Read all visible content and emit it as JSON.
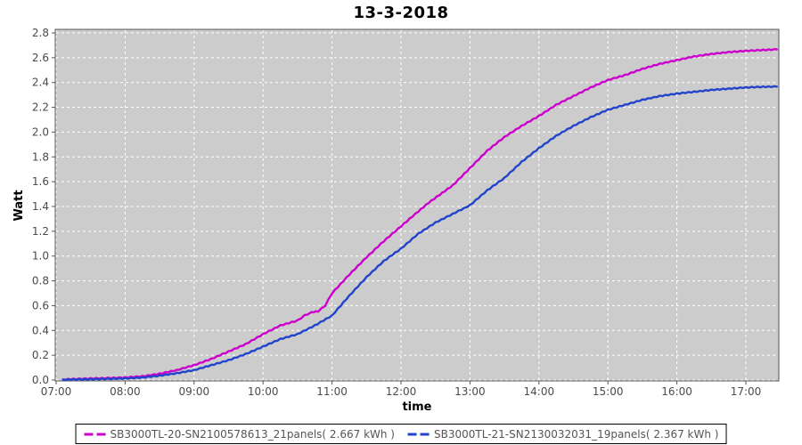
{
  "chart_data": {
    "type": "line",
    "title": "13-3-2018",
    "xlabel": "time",
    "ylabel": "Watt",
    "ylim": [
      0.0,
      2.8
    ],
    "y_tick_step": 0.2,
    "x_range_hours": [
      6.99,
      17.48
    ],
    "grid": true,
    "legend_position": "bottom",
    "x_ticks": [
      {
        "hour": 7,
        "label": "07:00"
      },
      {
        "hour": 8,
        "label": "08:00"
      },
      {
        "hour": 9,
        "label": "09:00"
      },
      {
        "hour": 10,
        "label": "10:00"
      },
      {
        "hour": 11,
        "label": "11:00"
      },
      {
        "hour": 12,
        "label": "12:00"
      },
      {
        "hour": 13,
        "label": "13:00"
      },
      {
        "hour": 14,
        "label": "14:00"
      },
      {
        "hour": 15,
        "label": "15:00"
      },
      {
        "hour": 16,
        "label": "16:00"
      },
      {
        "hour": 17,
        "label": "17:00"
      }
    ],
    "colors": {
      "plot_bg": "#CCCCCC",
      "grid": "#FFFFFF",
      "plot_border": "#555555",
      "tick_label": "#4A4A4A",
      "legend_text": "#555555",
      "legend_border": "#000000",
      "series1": "#CC00CC",
      "series2": "#2244CC"
    },
    "series": [
      {
        "name": "SB3000TL-20-SN2100578613_21panels",
        "label": "SB3000TL-20-SN2100578613_21panels( 2.667 kWh )",
        "total_kwh": 2.667,
        "color": "#CC00CC",
        "x_hours": [
          7.1,
          7.25,
          7.5,
          7.75,
          8.0,
          8.25,
          8.5,
          8.75,
          9.0,
          9.25,
          9.5,
          9.75,
          10.0,
          10.25,
          10.5,
          10.6,
          10.7,
          10.8,
          10.9,
          11.0,
          11.25,
          11.5,
          11.75,
          12.0,
          12.25,
          12.4,
          12.6,
          12.75,
          13.0,
          13.25,
          13.5,
          13.75,
          14.0,
          14.25,
          14.5,
          14.75,
          15.0,
          15.25,
          15.5,
          15.75,
          16.0,
          16.25,
          16.5,
          16.75,
          17.0,
          17.25,
          17.45
        ],
        "values_kwh": [
          0.005,
          0.008,
          0.012,
          0.016,
          0.02,
          0.03,
          0.05,
          0.08,
          0.12,
          0.17,
          0.23,
          0.29,
          0.37,
          0.44,
          0.48,
          0.52,
          0.545,
          0.555,
          0.6,
          0.7,
          0.85,
          0.99,
          1.12,
          1.24,
          1.36,
          1.43,
          1.51,
          1.57,
          1.71,
          1.85,
          1.96,
          2.05,
          2.13,
          2.22,
          2.29,
          2.36,
          2.42,
          2.46,
          2.51,
          2.55,
          2.58,
          2.61,
          2.63,
          2.645,
          2.655,
          2.662,
          2.667
        ]
      },
      {
        "name": "SB3000TL-21-SN2130032031_19panels",
        "label": "SB3000TL-21-SN2130032031_19panels( 2.367 kWh )",
        "total_kwh": 2.367,
        "color": "#2244CC",
        "x_hours": [
          7.1,
          7.25,
          7.5,
          7.75,
          8.0,
          8.25,
          8.5,
          8.75,
          9.0,
          9.25,
          9.5,
          9.75,
          10.0,
          10.25,
          10.5,
          10.75,
          11.0,
          11.25,
          11.5,
          11.75,
          12.0,
          12.25,
          12.5,
          12.75,
          13.0,
          13.25,
          13.5,
          13.75,
          14.0,
          14.25,
          14.5,
          14.75,
          15.0,
          15.25,
          15.5,
          15.75,
          16.0,
          16.25,
          16.5,
          16.75,
          17.0,
          17.25,
          17.45
        ],
        "values_kwh": [
          0.003,
          0.004,
          0.006,
          0.009,
          0.012,
          0.02,
          0.035,
          0.055,
          0.08,
          0.12,
          0.16,
          0.21,
          0.27,
          0.33,
          0.37,
          0.44,
          0.52,
          0.68,
          0.83,
          0.96,
          1.06,
          1.18,
          1.27,
          1.34,
          1.41,
          1.53,
          1.63,
          1.76,
          1.87,
          1.97,
          2.05,
          2.12,
          2.18,
          2.22,
          2.26,
          2.29,
          2.31,
          2.325,
          2.34,
          2.35,
          2.36,
          2.365,
          2.367
        ]
      }
    ]
  }
}
